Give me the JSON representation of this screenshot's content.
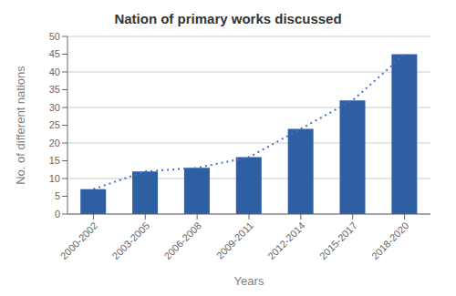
{
  "chart_data": {
    "type": "bar",
    "title": "Nation of primary works discussed",
    "xlabel": "Years",
    "ylabel": "No. of different nations",
    "categories": [
      "2000-2002",
      "2003-2005",
      "2006-2008",
      "2009-2011",
      "2012-2014",
      "2015-2017",
      "2018-2020"
    ],
    "series": [
      {
        "type": "bar",
        "color": "#2E5FA3",
        "values": [
          7,
          12,
          13,
          16,
          24,
          32,
          45
        ]
      },
      {
        "type": "line",
        "color": "#4472C4",
        "line_style": "dotted",
        "values": [
          7,
          12,
          13,
          16,
          24,
          32,
          45
        ]
      }
    ],
    "ylim": [
      0,
      50
    ],
    "yticks": [
      0,
      5,
      10,
      15,
      20,
      25,
      30,
      35,
      40,
      45,
      50
    ],
    "grid": true
  }
}
